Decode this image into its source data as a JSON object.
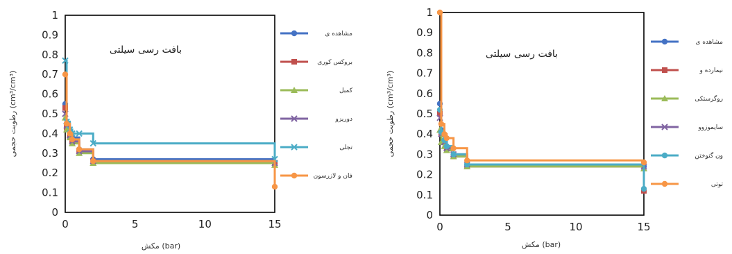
{
  "chart_data": [
    {
      "type": "line",
      "title": "بافت رسی سیلتی",
      "xlabel": "مکش (bar)",
      "ylabel": "رطوبت حجمی (cm³/cm³)",
      "xlim": [
        0,
        15
      ],
      "ylim": [
        0,
        1
      ],
      "x_ticks": [
        "0",
        "5",
        "10",
        "15"
      ],
      "y_ticks": [
        "0",
        "0.1",
        "0.2",
        "0.3",
        "0.4",
        "0.5",
        "0.6",
        "0.7",
        "0.8",
        "0.9",
        "1"
      ],
      "grid": false,
      "legend_position": "right",
      "series": [
        {
          "name": "مشاهده ی",
          "color": "#4472c4",
          "marker": "circle",
          "x": [
            0,
            0.1,
            0.33,
            0.5,
            1,
            2,
            15
          ],
          "y": [
            0.55,
            0.45,
            0.4,
            0.38,
            0.32,
            0.27,
            0.25
          ]
        },
        {
          "name": "بروکس کوری",
          "color": "#c0504d",
          "marker": "square",
          "x": [
            0,
            0.1,
            0.33,
            0.5,
            1,
            2,
            15
          ],
          "y": [
            0.53,
            0.43,
            0.39,
            0.36,
            0.31,
            0.26,
            0.25
          ]
        },
        {
          "name": "کمبل",
          "color": "#9bbb59",
          "marker": "triangle",
          "x": [
            0,
            0.1,
            0.33,
            0.5,
            1,
            2,
            15
          ],
          "y": [
            0.48,
            0.42,
            0.38,
            0.35,
            0.3,
            0.25,
            0.24
          ]
        },
        {
          "name": "دوریزو",
          "color": "#8064a2",
          "marker": "x",
          "x": [
            0,
            0.1,
            0.33,
            0.5,
            1,
            2,
            15
          ],
          "y": [
            0.5,
            0.44,
            0.39,
            0.36,
            0.31,
            0.26,
            0.25
          ]
        },
        {
          "name": "تجلی",
          "color": "#4bacc6",
          "marker": "x",
          "x": [
            0,
            0.1,
            0.33,
            0.5,
            1,
            2,
            15
          ],
          "y": [
            0.77,
            0.46,
            0.42,
            0.4,
            0.4,
            0.35,
            0.27
          ]
        },
        {
          "name": "فان و لازرسون",
          "color": "#f79646",
          "marker": "circle",
          "x": [
            0,
            0.1,
            0.33,
            0.5,
            1,
            2,
            15
          ],
          "y": [
            0.7,
            0.45,
            0.4,
            0.37,
            0.32,
            0.26,
            0.13
          ]
        }
      ]
    },
    {
      "type": "line",
      "title": "بافت رسی سیلتی",
      "xlabel": "مکش (bar)",
      "ylabel": "رطوبت حجمی (cm³/cm³)",
      "xlim": [
        0,
        15
      ],
      "ylim": [
        0,
        1
      ],
      "x_ticks": [
        "0",
        "5",
        "10",
        "15"
      ],
      "y_ticks": [
        "0",
        "0.1",
        "0.2",
        "0.3",
        "0.4",
        "0.5",
        "0.6",
        "0.7",
        "0.8",
        "0.9",
        "1"
      ],
      "grid": false,
      "legend_position": "right",
      "series": [
        {
          "name": "مشاهده ی",
          "color": "#4472c4",
          "marker": "circle",
          "x": [
            0,
            0.1,
            0.33,
            0.5,
            1,
            2,
            15
          ],
          "y": [
            0.55,
            0.42,
            0.37,
            0.34,
            0.3,
            0.25,
            0.24
          ]
        },
        {
          "name": "نیمارده و",
          "color": "#c0504d",
          "marker": "square",
          "x": [
            0,
            0.1,
            0.33,
            0.5,
            1,
            2,
            15
          ],
          "y": [
            0.5,
            0.4,
            0.36,
            0.33,
            0.29,
            0.24,
            0.12
          ]
        },
        {
          "name": "روگرستکی",
          "color": "#9bbb59",
          "marker": "triangle",
          "x": [
            0,
            0.1,
            0.33,
            0.5,
            1,
            2,
            15
          ],
          "y": [
            0.42,
            0.36,
            0.34,
            0.32,
            0.29,
            0.24,
            0.23
          ]
        },
        {
          "name": "سایموزوو",
          "color": "#8064a2",
          "marker": "x",
          "x": [
            0,
            0.1,
            0.33,
            0.5,
            1,
            2,
            15
          ],
          "y": [
            0.48,
            0.4,
            0.36,
            0.33,
            0.3,
            0.25,
            0.24
          ]
        },
        {
          "name": "ون گنوختن",
          "color": "#4bacc6",
          "marker": "circle",
          "x": [
            0,
            0.1,
            0.33,
            0.5,
            1,
            2,
            15
          ],
          "y": [
            0.52,
            0.41,
            0.37,
            0.34,
            0.3,
            0.25,
            0.13
          ]
        },
        {
          "name": "توتی",
          "color": "#f79646",
          "marker": "circle",
          "x": [
            0,
            0.1,
            0.33,
            0.5,
            1,
            2,
            15
          ],
          "y": [
            1.0,
            0.45,
            0.4,
            0.38,
            0.33,
            0.27,
            0.26
          ]
        }
      ]
    }
  ]
}
